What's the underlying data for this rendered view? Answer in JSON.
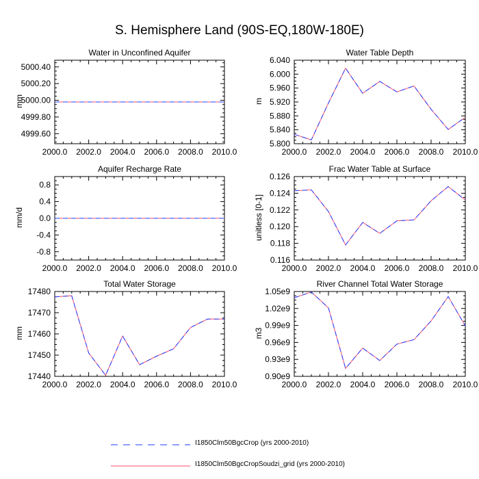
{
  "page": {
    "title": "S. Hemisphere Land (90S-EQ,180W-180E)"
  },
  "legend": [
    {
      "label": "I1850Clm50BgcCrop (yrs 2000-2010)",
      "color": "#1e3cff",
      "style": "dashed"
    },
    {
      "label": "I1850Clm50BgcCropSoudzi_grid (yrs 2000-2010)",
      "color": "#ff4d6a",
      "style": "solid"
    }
  ],
  "chart_data": [
    {
      "type": "line",
      "title": "Water in Unconfined Aquifer",
      "ylabel": "mm",
      "xlim": [
        2000,
        2010
      ],
      "ylim": [
        4999.48,
        5000.48
      ],
      "x_ticks": [
        "2000.0",
        "2002.0",
        "2004.0",
        "2006.0",
        "2008.0",
        "2010.0"
      ],
      "y_ticks": [
        {
          "v": 4999.6,
          "label": "4999.60"
        },
        {
          "v": 4999.8,
          "label": "4999.80"
        },
        {
          "v": 5000.0,
          "label": "5000.00"
        },
        {
          "v": 5000.2,
          "label": "5000.20"
        },
        {
          "v": 5000.4,
          "label": "5000.40"
        }
      ],
      "x": [
        2000,
        2001,
        2002,
        2003,
        2004,
        2005,
        2006,
        2007,
        2008,
        2009,
        2010
      ],
      "series": [
        {
          "name": "I1850Clm50BgcCrop (yrs 2000-2010)",
          "values": [
            4999.98,
            4999.98,
            4999.98,
            4999.98,
            4999.98,
            4999.98,
            4999.98,
            4999.98,
            4999.98,
            4999.98,
            4999.98
          ]
        },
        {
          "name": "I1850Clm50BgcCropSoudzi_grid (yrs 2000-2010)",
          "values": [
            4999.98,
            4999.98,
            4999.98,
            4999.98,
            4999.98,
            4999.98,
            4999.98,
            4999.98,
            4999.98,
            4999.98,
            4999.98
          ]
        }
      ]
    },
    {
      "type": "line",
      "title": "Water Table Depth",
      "ylabel": "m",
      "xlim": [
        2000,
        2010
      ],
      "ylim": [
        5.8,
        6.04
      ],
      "x_ticks": [
        "2000.0",
        "2002.0",
        "2004.0",
        "2006.0",
        "2008.0",
        "2010.0"
      ],
      "y_ticks": [
        {
          "v": 5.8,
          "label": "5.800"
        },
        {
          "v": 5.84,
          "label": "5.840"
        },
        {
          "v": 5.88,
          "label": "5.880"
        },
        {
          "v": 5.92,
          "label": "5.920"
        },
        {
          "v": 5.96,
          "label": "5.960"
        },
        {
          "v": 6.0,
          "label": "6.000"
        },
        {
          "v": 6.04,
          "label": "6.040"
        }
      ],
      "x": [
        2000,
        2001,
        2002,
        2003,
        2004,
        2005,
        2006,
        2007,
        2008,
        2009,
        2010
      ],
      "series": [
        {
          "name": "I1850Clm50BgcCrop (yrs 2000-2010)",
          "values": [
            5.827,
            5.811,
            5.917,
            6.017,
            5.945,
            5.979,
            5.949,
            5.966,
            5.899,
            5.841,
            5.876
          ]
        },
        {
          "name": "I1850Clm50BgcCropSoudzi_grid (yrs 2000-2010)",
          "values": [
            5.827,
            5.811,
            5.917,
            6.017,
            5.945,
            5.979,
            5.949,
            5.966,
            5.899,
            5.841,
            5.876
          ]
        }
      ]
    },
    {
      "type": "line",
      "title": "Aquifer Recharge Rate",
      "ylabel": "mm/d",
      "xlim": [
        2000,
        2010
      ],
      "ylim": [
        -1.0,
        1.0
      ],
      "x_ticks": [
        "2000.0",
        "2002.0",
        "2004.0",
        "2006.0",
        "2008.0",
        "2010.0"
      ],
      "y_ticks": [
        {
          "v": -0.8,
          "label": "-0.8"
        },
        {
          "v": -0.4,
          "label": "-0.4"
        },
        {
          "v": 0.0,
          "label": "0.0"
        },
        {
          "v": 0.4,
          "label": "0.4"
        },
        {
          "v": 0.8,
          "label": "0.8"
        }
      ],
      "x": [
        2000,
        2001,
        2002,
        2003,
        2004,
        2005,
        2006,
        2007,
        2008,
        2009,
        2010
      ],
      "series": [
        {
          "name": "I1850Clm50BgcCrop (yrs 2000-2010)",
          "values": [
            0,
            0,
            0,
            0,
            0,
            0,
            0,
            0,
            0,
            0,
            0
          ]
        },
        {
          "name": "I1850Clm50BgcCropSoudzi_grid (yrs 2000-2010)",
          "values": [
            0,
            0,
            0,
            0,
            0,
            0,
            0,
            0,
            0,
            0,
            0
          ]
        }
      ]
    },
    {
      "type": "line",
      "title": "Frac Water Table at Surface",
      "ylabel": "unitless [0-1]",
      "xlim": [
        2000,
        2010
      ],
      "ylim": [
        0.116,
        0.126
      ],
      "x_ticks": [
        "2000.0",
        "2002.0",
        "2004.0",
        "2006.0",
        "2008.0",
        "2010.0"
      ],
      "y_ticks": [
        {
          "v": 0.116,
          "label": "0.116"
        },
        {
          "v": 0.118,
          "label": "0.118"
        },
        {
          "v": 0.12,
          "label": "0.120"
        },
        {
          "v": 0.122,
          "label": "0.122"
        },
        {
          "v": 0.124,
          "label": "0.124"
        },
        {
          "v": 0.126,
          "label": "0.126"
        }
      ],
      "x": [
        2000,
        2001,
        2002,
        2003,
        2004,
        2005,
        2006,
        2007,
        2008,
        2009,
        2010
      ],
      "series": [
        {
          "name": "I1850Clm50BgcCrop (yrs 2000-2010)",
          "values": [
            0.1243,
            0.1244,
            0.1218,
            0.1178,
            0.1205,
            0.1192,
            0.1207,
            0.1208,
            0.1231,
            0.1248,
            0.1232
          ]
        },
        {
          "name": "I1850Clm50BgcCropSoudzi_grid (yrs 2000-2010)",
          "values": [
            0.1243,
            0.1244,
            0.1218,
            0.1178,
            0.1205,
            0.1192,
            0.1207,
            0.1208,
            0.1231,
            0.1248,
            0.1232
          ]
        }
      ]
    },
    {
      "type": "line",
      "title": "Total Water Storage",
      "ylabel": "mm",
      "xlim": [
        2000,
        2010
      ],
      "ylim": [
        17440,
        17480
      ],
      "x_ticks": [
        "2000.0",
        "2002.0",
        "2004.0",
        "2006.0",
        "2008.0",
        "2010.0"
      ],
      "y_ticks": [
        {
          "v": 17440,
          "label": "17440"
        },
        {
          "v": 17450,
          "label": "17450"
        },
        {
          "v": 17460,
          "label": "17460"
        },
        {
          "v": 17470,
          "label": "17470"
        },
        {
          "v": 17480,
          "label": "17480"
        }
      ],
      "x": [
        2000,
        2001,
        2002,
        2003,
        2004,
        2005,
        2006,
        2007,
        2008,
        2009,
        2010
      ],
      "series": [
        {
          "name": "I1850Clm50BgcCrop (yrs 2000-2010)",
          "values": [
            17477.5,
            17478.0,
            17451.0,
            17440.5,
            17459.0,
            17445.5,
            17449.5,
            17453.0,
            17463.0,
            17467.0,
            17467.0
          ]
        },
        {
          "name": "I1850Clm50BgcCropSoudzi_grid (yrs 2000-2010)",
          "values": [
            17477.5,
            17478.0,
            17451.0,
            17440.5,
            17459.0,
            17445.5,
            17449.5,
            17453.0,
            17463.0,
            17467.0,
            17467.0
          ]
        }
      ]
    },
    {
      "type": "line",
      "title": "River Channel Total Water Storage",
      "ylabel": "m3",
      "xlim": [
        2000,
        2010
      ],
      "ylim": [
        900000000.0,
        1050000000.0
      ],
      "x_ticks": [
        "2000.0",
        "2002.0",
        "2004.0",
        "2006.0",
        "2008.0",
        "2010.0"
      ],
      "y_ticks": [
        {
          "v": 900000000.0,
          "label": "0.90e9"
        },
        {
          "v": 930000000.0,
          "label": "0.93e9"
        },
        {
          "v": 960000000.0,
          "label": "0.96e9"
        },
        {
          "v": 990000000.0,
          "label": "0.99e9"
        },
        {
          "v": 1020000000.0,
          "label": "1.02e9"
        },
        {
          "v": 1050000000.0,
          "label": "1.05e9"
        }
      ],
      "x": [
        2000,
        2001,
        2002,
        2003,
        2004,
        2005,
        2006,
        2007,
        2008,
        2009,
        2010
      ],
      "series": [
        {
          "name": "I1850Clm50BgcCrop (yrs 2000-2010)",
          "values": [
            1039000000.0,
            1049000000.0,
            1021000000.0,
            914000000.0,
            950000000.0,
            928000000.0,
            957000000.0,
            965000000.0,
            998000000.0,
            1041000000.0,
            989000000.0
          ]
        },
        {
          "name": "I1850Clm50BgcCropSoudzi_grid (yrs 2000-2010)",
          "values": [
            1039000000.0,
            1049000000.0,
            1021000000.0,
            914000000.0,
            950000000.0,
            928000000.0,
            957000000.0,
            965000000.0,
            998000000.0,
            1041000000.0,
            989000000.0
          ]
        }
      ]
    }
  ]
}
